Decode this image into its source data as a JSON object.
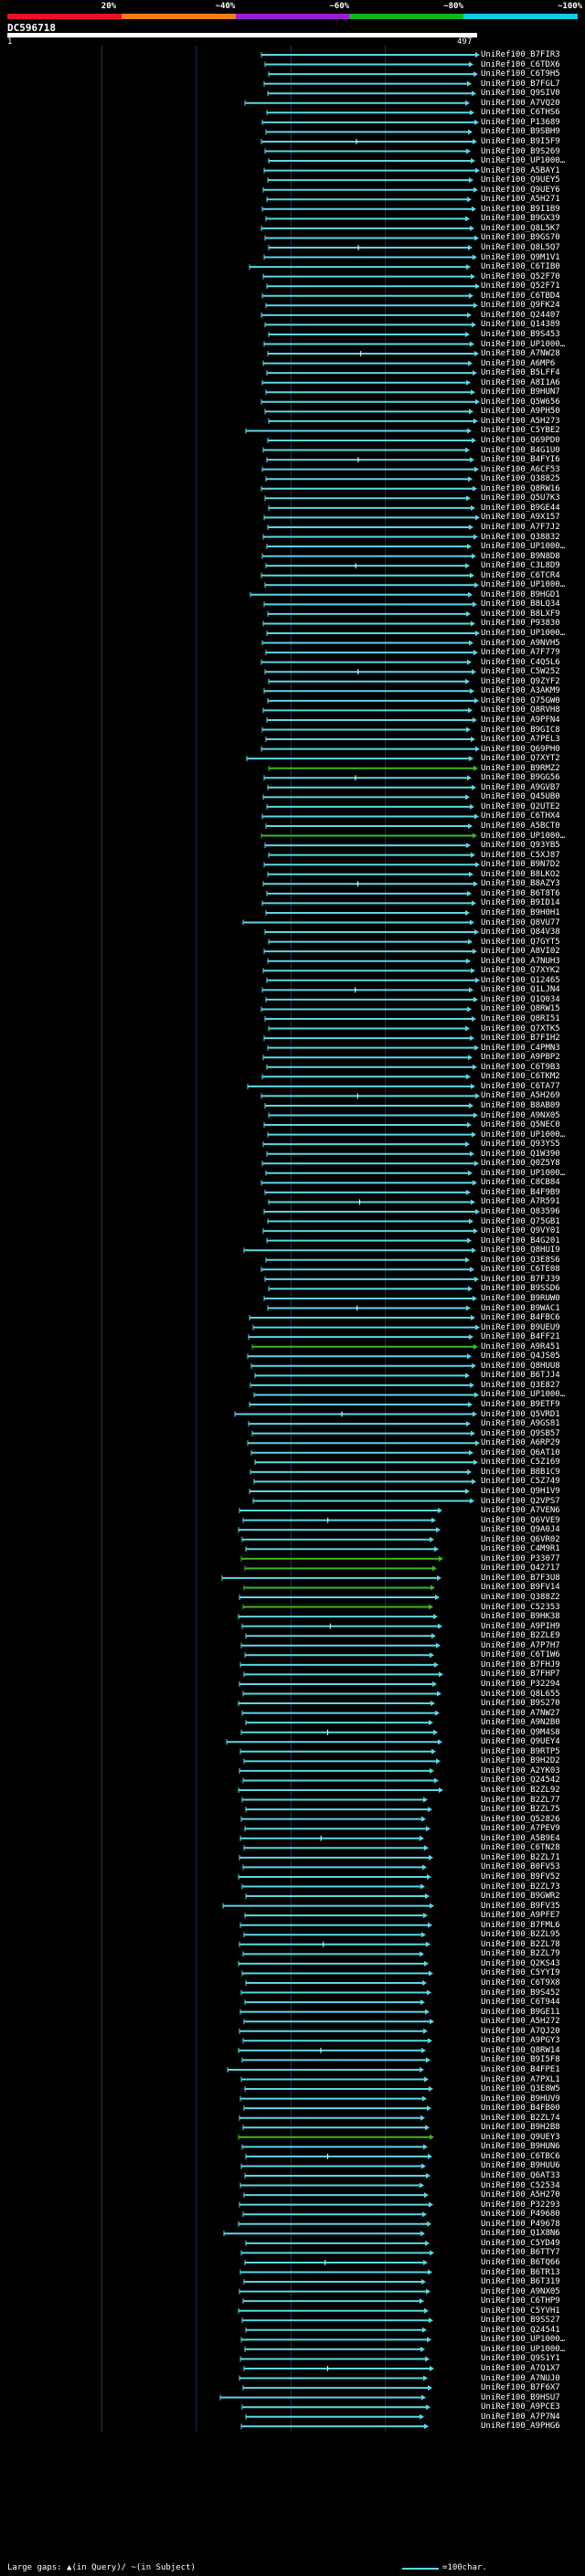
{
  "scale": {
    "labels": [
      "20%",
      "~40%",
      "~60%",
      "~80%",
      "~100%"
    ],
    "colors": [
      "#e8102c",
      "#f07f1a",
      "#9a1fd2",
      "#16b31d",
      "#14c8e8"
    ]
  },
  "query": {
    "name": "DC596718",
    "start": "1",
    "end": "497",
    "length": 497
  },
  "colors": {
    "cyan": "#5ad7e5",
    "green": "#3cb81e",
    "grid": "#1a3a5a",
    "bg": "#000000"
  },
  "hits": [
    "UniRef100_B7FIR3",
    "UniRef100_C6TDX6",
    "UniRef100_C6T9H5",
    "UniRef100_B7FGL7",
    "UniRef100_Q9SIV0",
    "UniRef100_A7VQ20",
    "UniRef100_C6THS6",
    "UniRef100_P13689",
    "UniRef100_B9SBH9",
    "UniRef100_B9I5F9",
    "UniRef100_B9S269",
    "UniRef100_UP1000…",
    "UniRef100_A5BAY1",
    "UniRef100_Q9UEY5",
    "UniRef100_Q9UEY6",
    "UniRef100_A5H271",
    "UniRef100_B9I1B9",
    "UniRef100_B9GX39",
    "UniRef100_Q8L5K7",
    "UniRef100_B9GS70",
    "UniRef100_Q8L5Q7",
    "UniRef100_Q9M1V1",
    "UniRef100_C6TIB0",
    "UniRef100_Q52F70",
    "UniRef100_Q52F71",
    "UniRef100_C6TBD4",
    "UniRef100_Q9FK24",
    "UniRef100_Q24407",
    "UniRef100_Q14389",
    "UniRef100_B9S453",
    "UniRef100_UP1000…",
    "UniRef100_A7NW28",
    "UniRef100_A6MP6",
    "UniRef100_B5LFF4",
    "UniRef100_A8I1A6",
    "UniRef100_B9HUN7",
    "UniRef100_Q5W656",
    "UniRef100_A9PH50",
    "UniRef100_A5H273",
    "UniRef100_C5YBE2",
    "UniRef100_Q69PD0",
    "UniRef100_B4G1U0",
    "UniRef100_B4FYI6",
    "UniRef100_A6CF53",
    "UniRef100_Q38825",
    "UniRef100_Q8RW16",
    "UniRef100_Q5U7K3",
    "UniRef100_B9GE44",
    "UniRef100_A9X157",
    "UniRef100_A7F7J2",
    "UniRef100_Q38832",
    "UniRef100_UP1000…",
    "UniRef100_B9N8D8",
    "UniRef100_C3L8D9",
    "UniRef100_C6TCR4",
    "UniRef100_UP1000…",
    "UniRef100_B9HGD1",
    "UniRef100_B8LQ34",
    "UniRef100_B8LXF9",
    "UniRef100_P93830",
    "UniRef100_UP1000…",
    "UniRef100_A9NVH5",
    "UniRef100_A7F779",
    "UniRef100_C4Q5L6",
    "UniRef100_C5W252",
    "UniRef100_Q9ZYF2",
    "UniRef100_A3AKM9",
    "UniRef100_Q75GW0",
    "UniRef100_Q8RVH8",
    "UniRef100_A9PFN4",
    "UniRef100_B9GIC8",
    "UniRef100_A7PEL3",
    "UniRef100_Q69PH0",
    "UniRef100_Q7XYT2",
    "UniRef100_B9RMZ2",
    "UniRef100_B9GG56",
    "UniRef100_A9GVB7",
    "UniRef100_Q45UB0",
    "UniRef100_Q2UTE2",
    "UniRef100_C6THX4",
    "UniRef100_A5BCT0",
    "UniRef100_UP1000…",
    "UniRef100_Q93YB5",
    "UniRef100_C5XJ87",
    "UniRef100_B9N7D2",
    "UniRef100_B8LKO2",
    "UniRef100_B8AZY3",
    "UniRef100_B6T8T6",
    "UniRef100_B9ID14",
    "UniRef100_B9H0H1",
    "UniRef100_Q8VU77",
    "UniRef100_Q84V38",
    "UniRef100_Q7GYT5",
    "UniRef100_A8VI02",
    "UniRef100_A7NUH3",
    "UniRef100_Q7XYK2",
    "UniRef100_Q12465",
    "UniRef100_Q1LJN4",
    "UniRef100_Q1Q034",
    "UniRef100_Q8RW15",
    "UniRef100_Q8RI51",
    "UniRef100_Q7XTK5",
    "UniRef100_B7FIH2",
    "UniRef100_C4PMN3",
    "UniRef100_A9PBP2",
    "UniRef100_C6T9B3",
    "UniRef100_C6TKM2",
    "UniRef100_C6TA77",
    "UniRef100_A5H269",
    "UniRef100_B8AB09",
    "UniRef100_A9NX05",
    "UniRef100_Q5NEC0",
    "UniRef100_UP1000…",
    "UniRef100_Q93YS5",
    "UniRef100_Q1W390",
    "UniRef100_Q0Z5Y8",
    "UniRef100_UP1000…",
    "UniRef100_C8CB84",
    "UniRef100_B4F9B9",
    "UniRef100_A7R591",
    "UniRef100_Q83596",
    "UniRef100_Q75GB1",
    "UniRef100_Q9VY01",
    "UniRef100_B4G201",
    "UniRef100_Q8HUI9",
    "UniRef100_Q3E8S6",
    "UniRef100_C6TE08",
    "UniRef100_B7FJ39",
    "UniRef100_B9SSD6",
    "UniRef100_B9RUW0",
    "UniRef100_B9WAC1",
    "UniRef100_B4FBC6",
    "UniRef100_B9UEU9",
    "UniRef100_B4FF21",
    "UniRef100_A9R451",
    "UniRef100_Q4JS05",
    "UniRef100_Q8HUU8",
    "UniRef100_B6TJJ4",
    "UniRef100_Q3E827",
    "UniRef100_UP1000…",
    "UniRef100_B9ETF9",
    "UniRef100_Q5VRD1",
    "UniRef100_A9GS81",
    "UniRef100_Q9SB57",
    "UniRef100_A6RP29",
    "UniRef100_Q6AT10",
    "UniRef100_C5Z169",
    "UniRef100_B8B1C9",
    "UniRef100_C5Z749",
    "UniRef100_Q9H1V9",
    "UniRef100_Q2VPS7",
    "UniRef100_A7VEN6",
    "UniRef100_Q6VVE9",
    "UniRef100_Q9A0J4",
    "UniRef100_Q6VR02",
    "UniRef100_C4M9R1",
    "UniRef100_P33077",
    "UniRef100_Q42717",
    "UniRef100_B7F3U8",
    "UniRef100_B9FV14",
    "UniRef100_Q388Z2",
    "UniRef100_C52353",
    "UniRef100_B9HK38",
    "UniRef100_A9PIH9",
    "UniRef100_B2ZLE9",
    "UniRef100_A7P7H7",
    "UniRef100_C6T1W6",
    "UniRef100_B7FHJ9",
    "UniRef100_B7FHP7",
    "UniRef100_P32294",
    "UniRef100_Q8L655",
    "UniRef100_B9S270",
    "UniRef100_A7NW27",
    "UniRef100_A9N2B0",
    "UniRef100_Q9M4S8",
    "UniRef100_Q9UEY4",
    "UniRef100_B9RTP5",
    "UniRef100_B9H2D2",
    "UniRef100_A2YK03",
    "UniRef100_Q24542",
    "UniRef100_B2ZL92",
    "UniRef100_B2ZL77",
    "UniRef100_B2ZL75",
    "UniRef100_Q52826",
    "UniRef100_A7PEV9",
    "UniRef100_A5B9E4",
    "UniRef100_C6TN28",
    "UniRef100_B2ZL71",
    "UniRef100_B0FV53",
    "UniRef100_B9FV52",
    "UniRef100_B2ZL73",
    "UniRef100_B9GWR2",
    "UniRef100_B9FV35",
    "UniRef100_A9PFE7",
    "UniRef100_B7FML6",
    "UniRef100_B2ZL95",
    "UniRef100_B2ZL78",
    "UniRef100_B2ZL79",
    "UniRef100_Q2KS43",
    "UniRef100_C5YYI9",
    "UniRef100_C6T9X8",
    "UniRef100_B9S452",
    "UniRef100_C6T944",
    "UniRef100_B9GE11",
    "UniRef100_A5H272",
    "UniRef100_A7QJ20",
    "UniRef100_A9PGY3",
    "UniRef100_Q8RW14",
    "UniRef100_B9I5F8",
    "UniRef100_B4FPE1",
    "UniRef100_A7PXL1",
    "UniRef100_Q3E8W5",
    "UniRef100_B9HUV9",
    "UniRef100_B4FB00",
    "UniRef100_B2ZL74",
    "UniRef100_B9H2B8",
    "UniRef100_Q9UEY3",
    "UniRef100_B9HUN6",
    "UniRef100_C6TBC6",
    "UniRef100_B9HUU6",
    "UniRef100_Q6AT33",
    "UniRef100_C52534",
    "UniRef100_A5H270",
    "UniRef100_P32293",
    "UniRef100_P49680",
    "UniRef100_P49678",
    "UniRef100_Q1X8N6",
    "UniRef100_C5YD49",
    "UniRef100_B6TTY7",
    "UniRef100_B6TQ66",
    "UniRef100_B6TR13",
    "UniRef100_B6T319",
    "UniRef100_A9NX05",
    "UniRef100_C6THP9",
    "UniRef100_C5YVH1",
    "UniRef100_B9SS27",
    "UniRef100_Q24541",
    "UniRef100_UP1000…",
    "UniRef100_UP1000…",
    "UniRef100_Q9S1Y1",
    "UniRef100_A7Q1X7",
    "UniRef100_A7NUJ0",
    "UniRef100_B7F6X7",
    "UniRef100_B9HSU7",
    "UniRef100_A9PCE3",
    "UniRef100_A7P7N4",
    "UniRef100_A9PHG6"
  ],
  "footer": {
    "gaps_label": "Large gaps: ▲(in Query)/ ~(in Subject)",
    "scale_label": "=100char."
  }
}
